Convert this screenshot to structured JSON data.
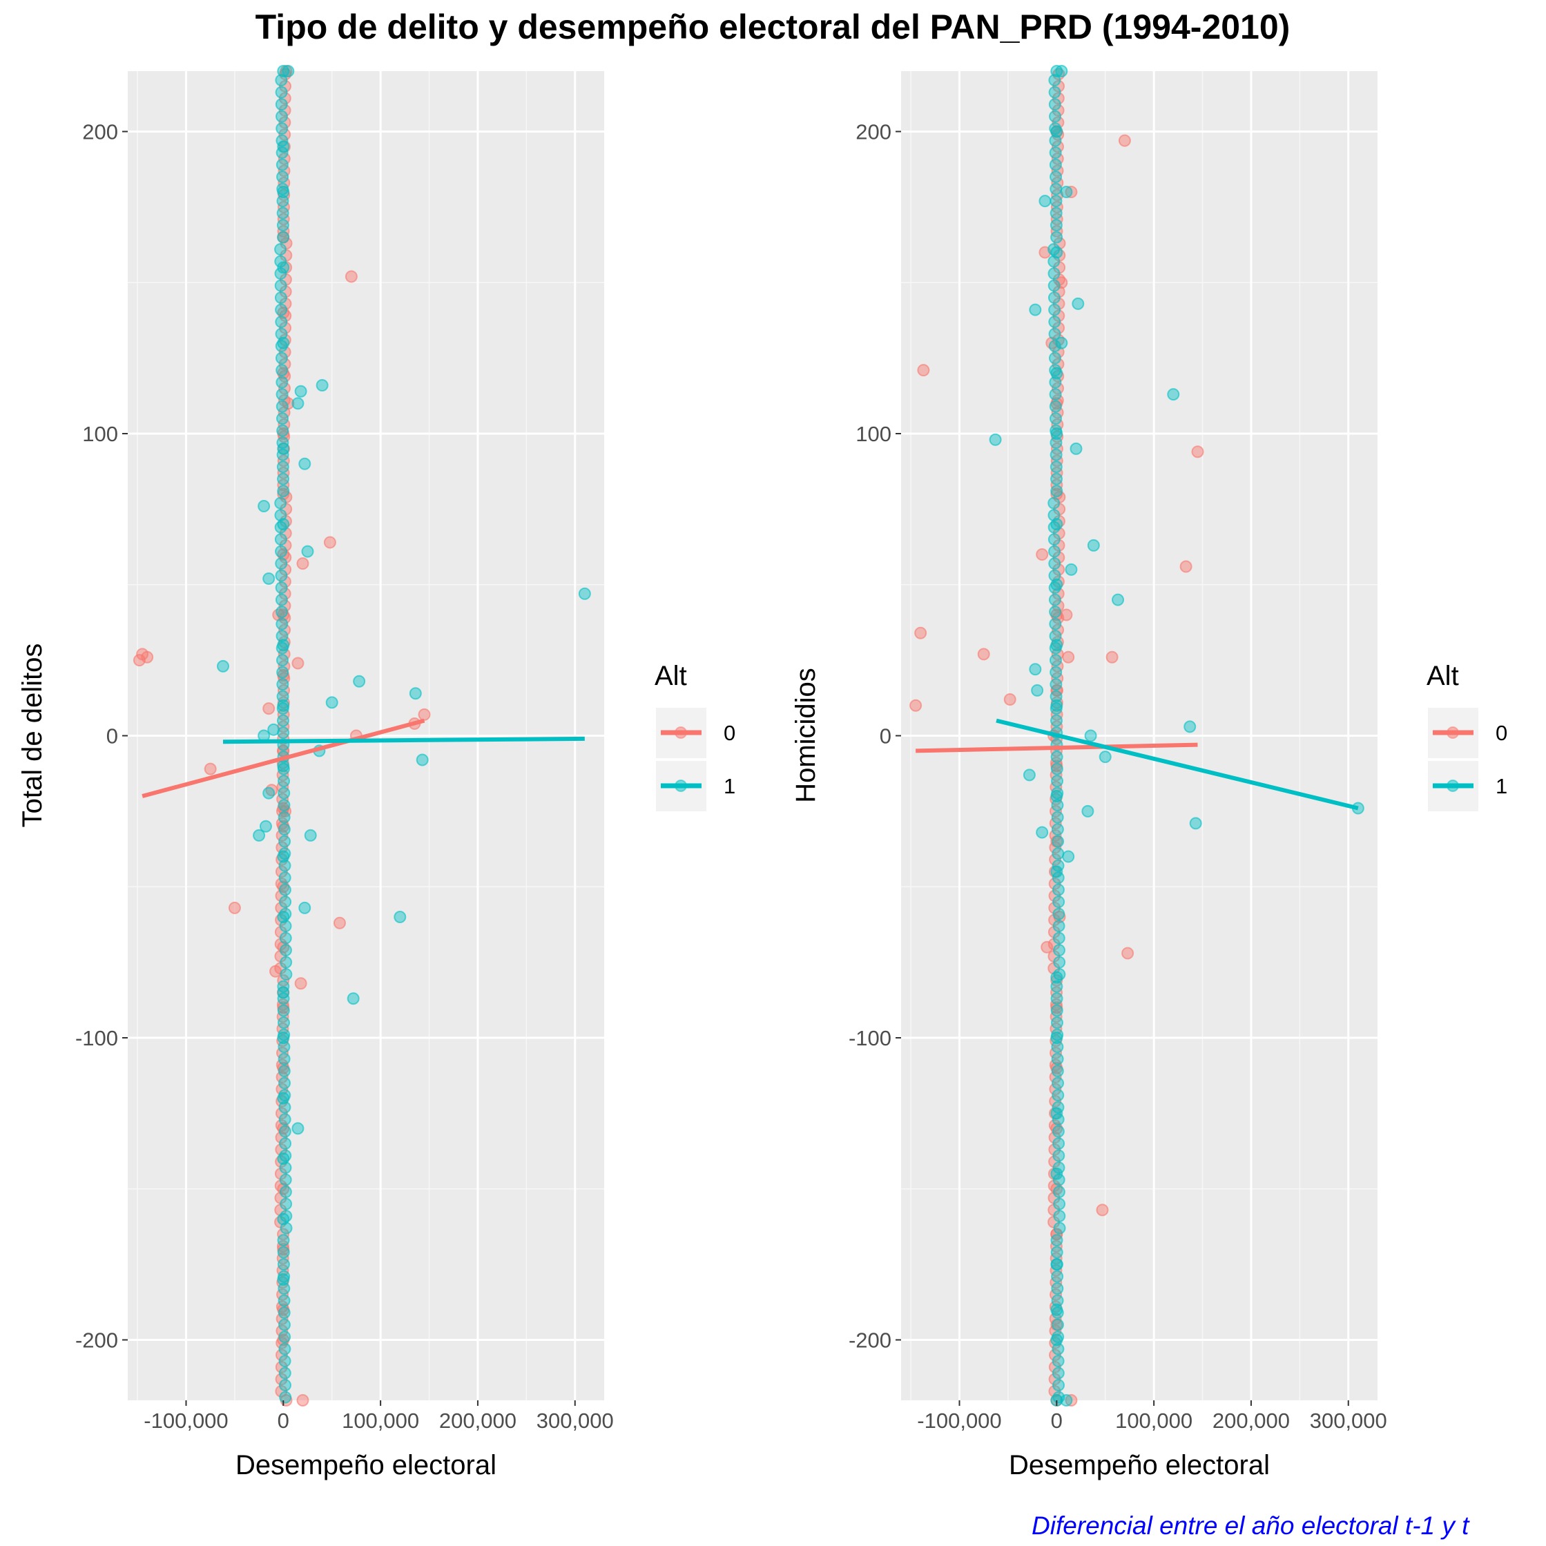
{
  "title": "Tipo de delito y desempeño electoral del PAN_PRD (1994-2010)",
  "caption": "Diferencial entre el año electoral t-1 y t",
  "colors": {
    "group_0": "#F8766D",
    "group_1": "#00BFC4",
    "panel_bg": "#EBEBEB",
    "grid": "#FFFFFF",
    "caption": "#0000FF"
  },
  "chart_data": [
    {
      "type": "scatter",
      "xlabel": "Desempeño electoral",
      "ylabel": "Total de delitos",
      "xlim": [
        -160000,
        330000
      ],
      "ylim": [
        -220,
        220
      ],
      "x_ticks": [
        -100000,
        0,
        100000,
        200000,
        300000
      ],
      "x_tick_labels": [
        "-100,000",
        "0",
        "100,000",
        "200,000",
        "300,000"
      ],
      "y_ticks": [
        -200,
        -100,
        0,
        100,
        200
      ],
      "y_tick_labels": [
        "-200",
        "-100",
        "0",
        "100",
        "200"
      ],
      "legend": {
        "title": "Alt",
        "labels": [
          "0",
          "1"
        ],
        "position": "right"
      },
      "grid": true,
      "series": [
        {
          "name": "0",
          "color": "#F8766D",
          "trend_line": [
            [
              -145000,
              -20
            ],
            [
              145000,
              5
            ]
          ],
          "points": [
            [
              -148000,
              25
            ],
            [
              -145000,
              27
            ],
            [
              -140000,
              26
            ],
            [
              -75000,
              -11
            ],
            [
              -50000,
              -57
            ],
            [
              70000,
              152
            ],
            [
              48000,
              64
            ],
            [
              58000,
              -62
            ],
            [
              75000,
              0
            ],
            [
              135000,
              4
            ],
            [
              145000,
              7
            ],
            [
              -15000,
              9
            ],
            [
              -12000,
              -18
            ],
            [
              20000,
              57
            ],
            [
              18000,
              -82
            ],
            [
              15000,
              24
            ],
            [
              5000,
              110
            ],
            [
              -5000,
              40
            ],
            [
              -8000,
              -78
            ],
            [
              2000,
              -25
            ],
            [
              0,
              -24
            ],
            [
              0,
              -30
            ],
            [
              0,
              -50
            ],
            [
              0,
              -70
            ],
            [
              0,
              -90
            ],
            [
              0,
              -110
            ],
            [
              0,
              -130
            ],
            [
              0,
              -150
            ],
            [
              0,
              -170
            ],
            [
              0,
              -190
            ],
            [
              0,
              -200
            ],
            [
              0,
              165
            ],
            [
              0,
              140
            ],
            [
              0,
              120
            ],
            [
              0,
              100
            ],
            [
              0,
              80
            ],
            [
              0,
              60
            ],
            [
              0,
              40
            ],
            [
              0,
              20
            ],
            [
              0,
              -5
            ],
            [
              3000,
              -220
            ],
            [
              20000,
              -220
            ],
            [
              3000,
              220
            ]
          ]
        },
        {
          "name": "1",
          "color": "#00BFC4",
          "trend_line": [
            [
              -62000,
              -2
            ],
            [
              310000,
              -1
            ]
          ],
          "points": [
            [
              310000,
              47
            ],
            [
              -62000,
              23
            ],
            [
              -20000,
              76
            ],
            [
              -15000,
              52
            ],
            [
              -25000,
              -33
            ],
            [
              -18000,
              -30
            ],
            [
              -20000,
              0
            ],
            [
              22000,
              90
            ],
            [
              25000,
              61
            ],
            [
              40000,
              116
            ],
            [
              18000,
              114
            ],
            [
              15000,
              110
            ],
            [
              78000,
              18
            ],
            [
              50000,
              11
            ],
            [
              120000,
              -60
            ],
            [
              136000,
              14
            ],
            [
              143000,
              -8
            ],
            [
              72000,
              -87
            ],
            [
              37000,
              -5
            ],
            [
              28000,
              -33
            ],
            [
              22000,
              -57
            ],
            [
              15000,
              -130
            ],
            [
              -15000,
              -19
            ],
            [
              -10000,
              2
            ],
            [
              0,
              195
            ],
            [
              0,
              180
            ],
            [
              0,
              155
            ],
            [
              0,
              130
            ],
            [
              0,
              95
            ],
            [
              0,
              70
            ],
            [
              0,
              30
            ],
            [
              0,
              10
            ],
            [
              0,
              -10
            ],
            [
              0,
              -40
            ],
            [
              0,
              -60
            ],
            [
              0,
              -85
            ],
            [
              0,
              -100
            ],
            [
              0,
              -120
            ],
            [
              0,
              -140
            ],
            [
              0,
              -160
            ],
            [
              0,
              -180
            ],
            [
              0,
              220
            ],
            [
              5000,
              220
            ]
          ]
        }
      ]
    },
    {
      "type": "scatter",
      "xlabel": "Desempeño electoral",
      "ylabel": "Homicidios",
      "xlim": [
        -160000,
        330000
      ],
      "ylim": [
        -220,
        220
      ],
      "x_ticks": [
        -100000,
        0,
        100000,
        200000,
        300000
      ],
      "x_tick_labels": [
        "-100,000",
        "0",
        "100,000",
        "200,000",
        "300,000"
      ],
      "y_ticks": [
        -200,
        -100,
        0,
        100,
        200
      ],
      "y_tick_labels": [
        "-200",
        "-100",
        "0",
        "100",
        "200"
      ],
      "legend": {
        "title": "Alt",
        "labels": [
          "0",
          "1"
        ],
        "position": "right"
      },
      "grid": true,
      "series": [
        {
          "name": "0",
          "color": "#F8766D",
          "trend_line": [
            [
              -145000,
              -5
            ],
            [
              145000,
              -3
            ]
          ],
          "points": [
            [
              -145000,
              10
            ],
            [
              -140000,
              34
            ],
            [
              -137000,
              121
            ],
            [
              -75000,
              27
            ],
            [
              -48000,
              12
            ],
            [
              70000,
              197
            ],
            [
              145000,
              94
            ],
            [
              133000,
              56
            ],
            [
              57000,
              26
            ],
            [
              47000,
              -157
            ],
            [
              73000,
              -72
            ],
            [
              -15000,
              60
            ],
            [
              -12000,
              160
            ],
            [
              15000,
              180
            ],
            [
              5000,
              150
            ],
            [
              -5000,
              130
            ],
            [
              3000,
              -60
            ],
            [
              -10000,
              -70
            ],
            [
              0,
              -220
            ],
            [
              15000,
              -220
            ],
            [
              0,
              200
            ],
            [
              0,
              110
            ],
            [
              0,
              80
            ],
            [
              0,
              40
            ],
            [
              0,
              15
            ],
            [
              0,
              -10
            ],
            [
              0,
              -35
            ],
            [
              0,
              -90
            ],
            [
              0,
              -110
            ],
            [
              0,
              -130
            ],
            [
              0,
              -150
            ],
            [
              0,
              -165
            ],
            [
              0,
              -195
            ],
            [
              -3000,
              0
            ],
            [
              10000,
              40
            ],
            [
              12000,
              26
            ]
          ]
        },
        {
          "name": "1",
          "color": "#00BFC4",
          "trend_line": [
            [
              -62000,
              5
            ],
            [
              310000,
              -24
            ]
          ],
          "points": [
            [
              310000,
              -24
            ],
            [
              -63000,
              98
            ],
            [
              -22000,
              141
            ],
            [
              -12000,
              177
            ],
            [
              120000,
              113
            ],
            [
              22000,
              143
            ],
            [
              20000,
              95
            ],
            [
              63000,
              45
            ],
            [
              38000,
              63
            ],
            [
              143000,
              -29
            ],
            [
              137000,
              3
            ],
            [
              50000,
              -7
            ],
            [
              35000,
              0
            ],
            [
              32000,
              -25
            ],
            [
              -28000,
              -13
            ],
            [
              -22000,
              22
            ],
            [
              -20000,
              15
            ],
            [
              -15000,
              -32
            ],
            [
              10000,
              180
            ],
            [
              5000,
              130
            ],
            [
              0,
              200
            ],
            [
              0,
              160
            ],
            [
              0,
              120
            ],
            [
              0,
              100
            ],
            [
              0,
              70
            ],
            [
              0,
              50
            ],
            [
              0,
              30
            ],
            [
              0,
              10
            ],
            [
              0,
              -20
            ],
            [
              0,
              -45
            ],
            [
              0,
              -80
            ],
            [
              0,
              -100
            ],
            [
              0,
              -125
            ],
            [
              0,
              -145
            ],
            [
              0,
              -175
            ],
            [
              0,
              -190
            ],
            [
              0,
              -200
            ],
            [
              0,
              220
            ],
            [
              5000,
              220
            ],
            [
              0,
              -220
            ],
            [
              10000,
              -220
            ],
            [
              15000,
              55
            ],
            [
              12000,
              -40
            ]
          ]
        }
      ]
    }
  ]
}
